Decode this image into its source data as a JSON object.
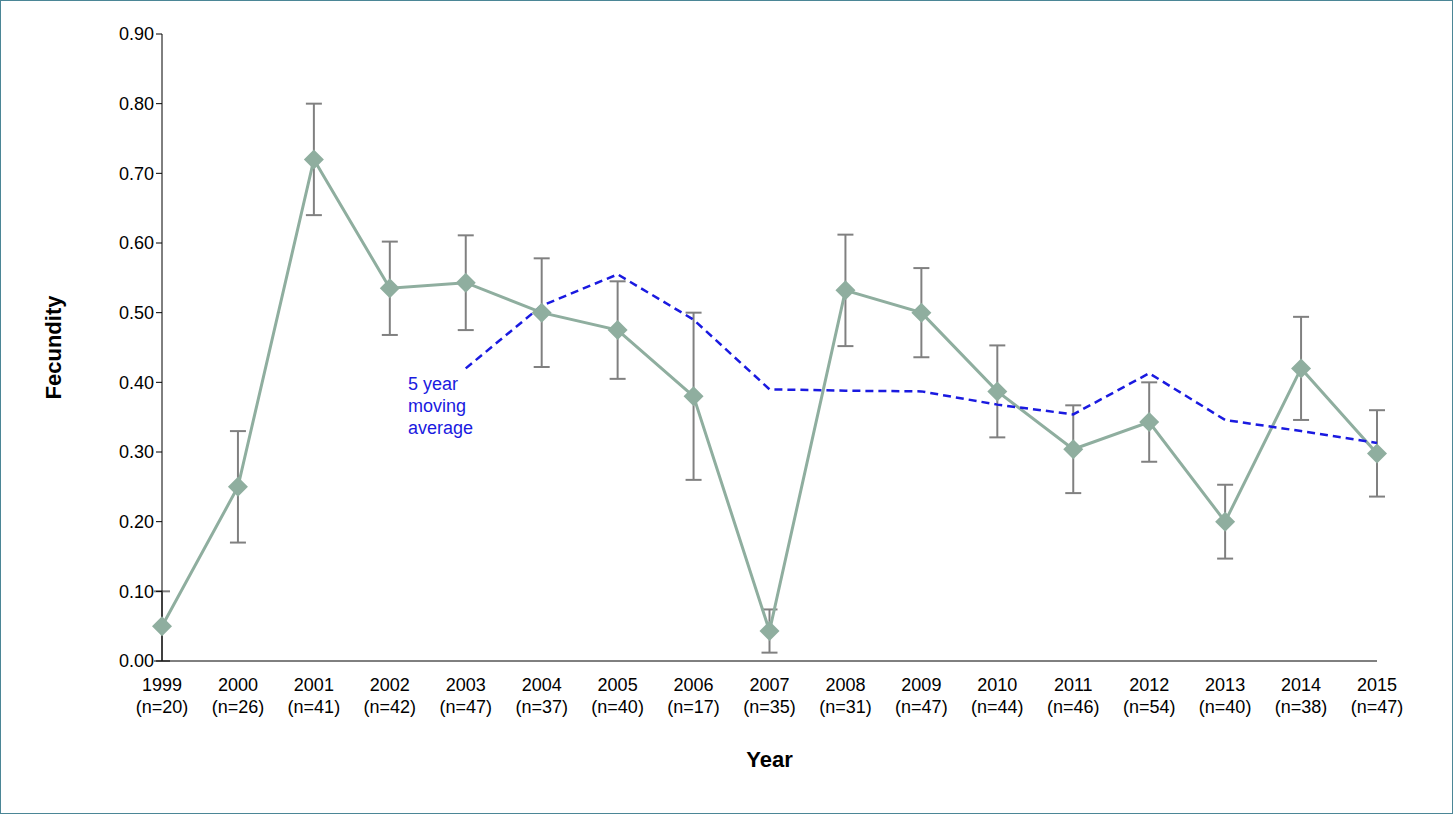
{
  "chart_data": {
    "type": "line",
    "x_label": "Year",
    "y_label": "Fecundity",
    "annotation": "5 year moving average",
    "categories": [
      "1999 (n=20)",
      "2000 (n=26)",
      "2001 (n=41)",
      "2002 (n=42)",
      "2003 (n=47)",
      "2004 (n=37)",
      "2005 (n=40)",
      "2006 (n=17)",
      "2007 (n=35)",
      "2008 (n=31)",
      "2009 (n=47)",
      "2010 (n=44)",
      "2011 (n=46)",
      "2012 (n=54)",
      "2013 (n=40)",
      "2014 (n=38)",
      "2015 (n=47)"
    ],
    "series": [
      {
        "name": "Fecundity",
        "color": "#8fae9f",
        "marker": "diamond",
        "line_style": "solid",
        "values": [
          0.05,
          0.25,
          0.72,
          0.535,
          0.543,
          0.5,
          0.475,
          0.38,
          0.043,
          0.532,
          0.5,
          0.387,
          0.304,
          0.343,
          0.2,
          0.42,
          0.298
        ],
        "errors": [
          0.05,
          0.08,
          0.08,
          0.067,
          0.068,
          0.078,
          0.07,
          0.12,
          0.031,
          0.08,
          0.064,
          0.066,
          0.063,
          0.057,
          0.053,
          0.074,
          0.062
        ]
      },
      {
        "name": "5 year moving average",
        "color": "#1a1ae0",
        "marker": "none",
        "line_style": "dashed",
        "values": [
          null,
          null,
          null,
          null,
          0.42,
          0.51,
          0.555,
          0.49,
          0.39,
          0.388,
          0.387,
          0.368,
          0.354,
          0.413,
          0.346,
          0.33,
          0.313
        ]
      }
    ],
    "ylim": [
      0,
      0.9
    ],
    "yticks": [
      {
        "value": 0,
        "label": "0.00"
      },
      {
        "value": 0.1,
        "label": "0.10"
      },
      {
        "value": 0.2,
        "label": "0.20"
      },
      {
        "value": 0.3,
        "label": "0.30"
      },
      {
        "value": 0.4,
        "label": "0.40"
      },
      {
        "value": 0.5,
        "label": "0.50"
      },
      {
        "value": 0.6,
        "label": "0.60"
      },
      {
        "value": 0.7,
        "label": "0.70"
      },
      {
        "value": 0.8,
        "label": "0.80"
      },
      {
        "value": 0.9,
        "label": "0.90"
      }
    ],
    "grid": false
  }
}
